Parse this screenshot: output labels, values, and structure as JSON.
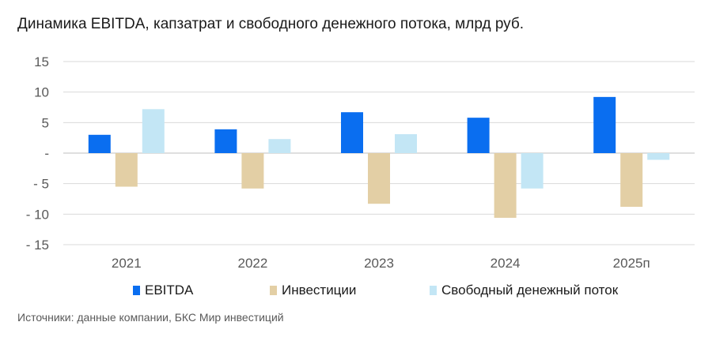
{
  "title": "Динамика EBITDA, капзатрат и свободного денежного потока, млрд руб.",
  "source": "Источники: данные компании, БКС Мир инвестиций",
  "colors": {
    "ebitda": "#0a6ef0",
    "invest": "#e3cfa5",
    "fcf": "#c3e6f5",
    "grid": "#d9d9d9",
    "axis": "#bfbfbf",
    "text": "#595959"
  },
  "chart_data": {
    "type": "bar",
    "title": "Динамика EBITDA, капзатрат и свободного денежного потока, млрд руб.",
    "categories": [
      "2021",
      "2022",
      "2023",
      "2024",
      "2025п"
    ],
    "series": [
      {
        "name": "EBITDA",
        "values": [
          3.0,
          3.9,
          6.7,
          5.8,
          9.2
        ]
      },
      {
        "name": "Инвестиции",
        "values": [
          -5.5,
          -5.8,
          -8.3,
          -10.6,
          -8.8
        ]
      },
      {
        "name": "Свободный денежный поток",
        "values": [
          7.2,
          2.3,
          3.1,
          -5.8,
          -1.1
        ]
      }
    ],
    "ylim": [
      -15,
      15
    ],
    "yticks": [
      15,
      10,
      5,
      0,
      -5,
      -10,
      -15
    ],
    "ytick_labels": [
      "15",
      "10",
      "5",
      "-",
      "- 5",
      "- 10",
      "- 15"
    ],
    "grid": true,
    "legend_position": "bottom"
  }
}
